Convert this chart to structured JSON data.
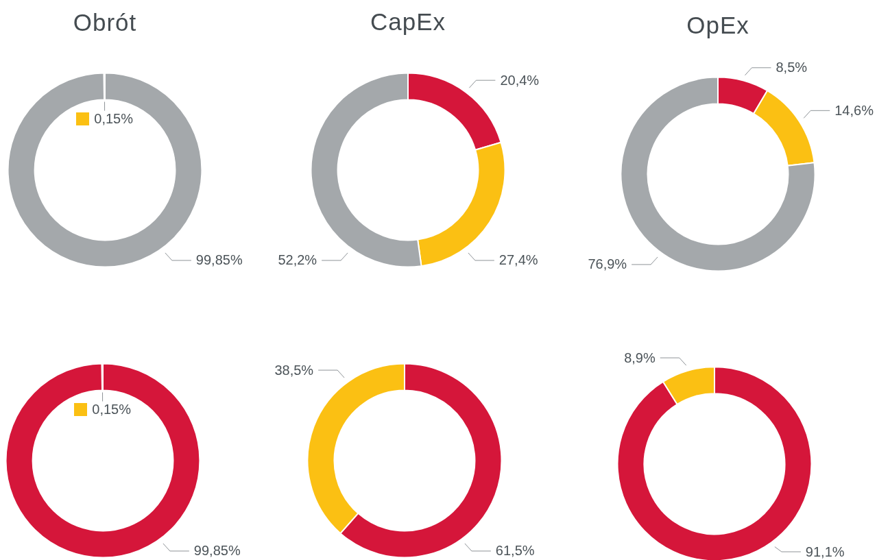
{
  "chart_data": [
    {
      "type": "donut",
      "title": "Obrót",
      "categories": [
        null,
        null
      ],
      "values": [
        99.85,
        0.15
      ],
      "colors": [
        "#a4a8ab",
        "#fbc013"
      ],
      "value_labels": [
        "99,85%",
        "0,15%"
      ]
    },
    {
      "type": "donut",
      "title": "CapEx",
      "categories": [
        null,
        null,
        null
      ],
      "values": [
        20.4,
        27.4,
        52.2
      ],
      "colors": [
        "#d5163a",
        "#fbc013",
        "#a4a8ab"
      ],
      "value_labels": [
        "20,4%",
        "27,4%",
        "52,2%"
      ]
    },
    {
      "type": "donut",
      "title": "OpEx",
      "categories": [
        null,
        null,
        null
      ],
      "values": [
        8.5,
        14.6,
        76.9
      ],
      "colors": [
        "#d5163a",
        "#fbc013",
        "#a4a8ab"
      ],
      "value_labels": [
        "8,5%",
        "14,6%",
        "76,9%"
      ]
    },
    {
      "type": "donut",
      "categories": [
        null,
        null
      ],
      "values": [
        99.85,
        0.15
      ],
      "colors": [
        "#d5163a",
        "#fbc013"
      ],
      "value_labels": [
        "99,85%",
        "0,15%"
      ]
    },
    {
      "type": "donut",
      "categories": [
        null,
        null
      ],
      "values": [
        61.5,
        38.5
      ],
      "colors": [
        "#d5163a",
        "#fbc013"
      ],
      "value_labels": [
        "61,5%",
        "38,5%"
      ]
    },
    {
      "type": "donut",
      "categories": [
        null,
        null
      ],
      "values": [
        91.1,
        8.9
      ],
      "colors": [
        "#d5163a",
        "#fbc013"
      ],
      "value_labels": [
        "91,1%",
        "8,9%"
      ]
    }
  ]
}
